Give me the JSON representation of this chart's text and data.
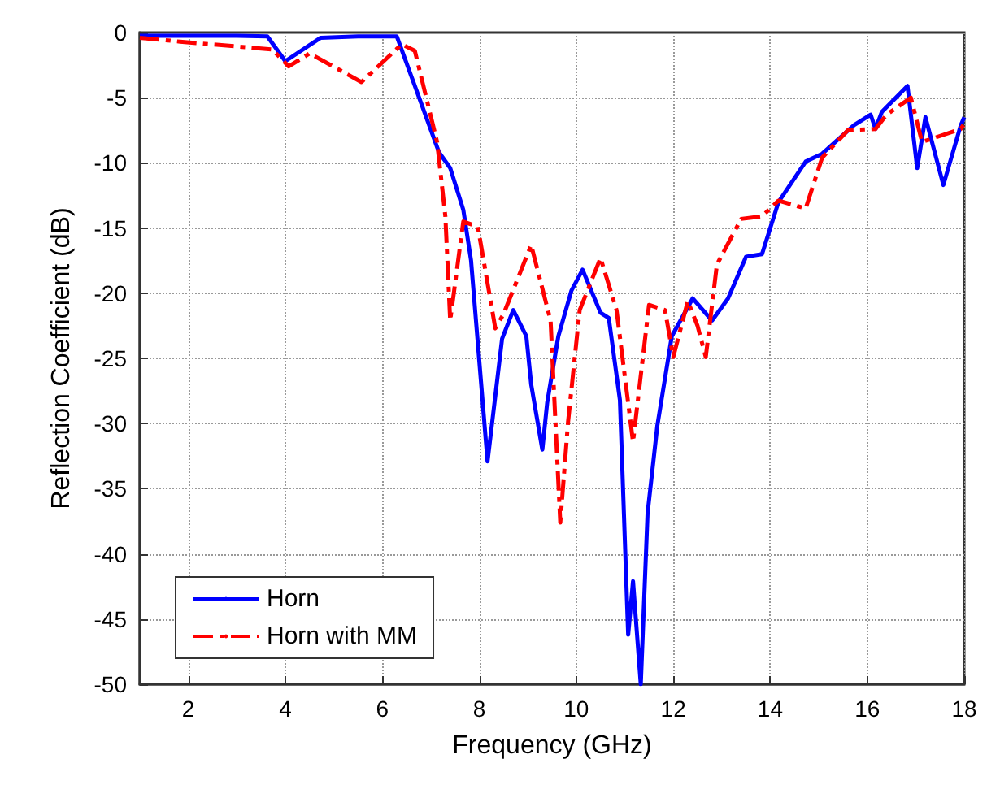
{
  "chart_data": {
    "type": "line",
    "xlabel": "Frequency (GHz)",
    "ylabel": "Reflection Coefficient (dB)",
    "xlim": [
      1,
      18
    ],
    "xticks": [
      2,
      4,
      6,
      8,
      10,
      12,
      14,
      16,
      18
    ],
    "ylim": [
      -50,
      0
    ],
    "yticks": [
      -50,
      -45,
      -40,
      -35,
      -30,
      -25,
      -20,
      -15,
      -10,
      -5,
      0
    ],
    "grid": true,
    "legend": "bottom left",
    "marker": "none",
    "series": [
      {
        "name": "Horn",
        "color": "#0000ff",
        "line_style": "solid",
        "x": [
          1,
          2,
          3,
          3.63,
          4.0,
          4.73,
          5.5,
          6.3,
          6.73,
          7.17,
          7.4,
          7.67,
          7.83,
          8.17,
          8.47,
          8.7,
          8.97,
          9.07,
          9.3,
          9.4,
          9.63,
          9.9,
          10.13,
          10.5,
          10.67,
          10.9,
          11.07,
          11.17,
          11.33,
          11.47,
          11.67,
          11.97,
          12.4,
          12.8,
          13.13,
          13.5,
          13.83,
          14.17,
          14.73,
          15.07,
          15.73,
          16.07,
          16.17,
          16.3,
          16.83,
          17.03,
          17.2,
          17.57,
          17.93,
          18
        ],
        "values": [
          -0.25,
          -0.25,
          -0.25,
          -0.3,
          -2.2,
          -0.4,
          -0.3,
          -0.3,
          -4.7,
          -9.2,
          -10.4,
          -13.6,
          -17.5,
          -32.9,
          -23.5,
          -21.3,
          -23.3,
          -27,
          -32,
          -28.4,
          -23.3,
          -19.8,
          -18.2,
          -21.5,
          -21.9,
          -28.2,
          -46.2,
          -42.1,
          -50,
          -36.9,
          -30.2,
          -23.3,
          -20.4,
          -22.1,
          -20.4,
          -17.2,
          -17,
          -13,
          -9.9,
          -9.3,
          -7.1,
          -6.3,
          -7.4,
          -6.1,
          -4.1,
          -10.4,
          -6.5,
          -11.7,
          -7.1,
          -6.5
        ]
      },
      {
        "name": "Horn with MM",
        "color": "#ff0000",
        "line_style": "dashed",
        "x": [
          1,
          1.83,
          3.73,
          4.07,
          4.5,
          5.57,
          6.4,
          6.67,
          7.13,
          7.3,
          7.4,
          7.67,
          7.97,
          8.33,
          8.5,
          9.07,
          9.47,
          9.67,
          9.83,
          10.07,
          10.5,
          10.83,
          11.17,
          11.5,
          11.83,
          12.0,
          12.3,
          12.5,
          12.67,
          12.9,
          13.4,
          13.83,
          14.17,
          14.73,
          15.07,
          15.6,
          16.17,
          16.4,
          16.9,
          17.13,
          17.93,
          18
        ],
        "values": [
          -0.4,
          -0.7,
          -1.3,
          -2.6,
          -1.6,
          -3.8,
          -0.9,
          -1.4,
          -8.4,
          -14.1,
          -22.1,
          -14.5,
          -14.9,
          -22.7,
          -21.6,
          -16.3,
          -22.1,
          -37.6,
          -29.9,
          -21.3,
          -17.3,
          -21.3,
          -31.4,
          -20.9,
          -21.3,
          -24.9,
          -20.6,
          -22.5,
          -24.9,
          -17.8,
          -14.3,
          -14.1,
          -12.9,
          -13.5,
          -9.6,
          -7.5,
          -7.4,
          -6.3,
          -5,
          -8.4,
          -7.4,
          -7
        ]
      }
    ]
  }
}
